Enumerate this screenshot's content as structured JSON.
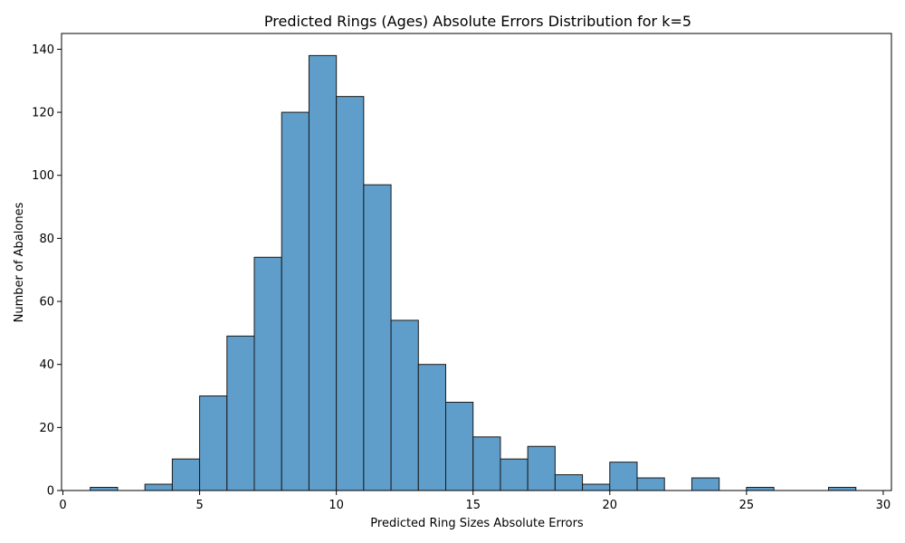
{
  "chart_data": {
    "type": "bar",
    "title": "Predicted Rings (Ages) Absolute Errors Distribution for k=5",
    "xlabel": "Predicted Ring Sizes Absolute Errors",
    "ylabel": "Number of Abalones",
    "xlim": [
      -0.05,
      30.3
    ],
    "ylim": [
      0,
      145
    ],
    "xticks": [
      0,
      5,
      10,
      15,
      20,
      25,
      30
    ],
    "yticks": [
      0,
      20,
      40,
      60,
      80,
      100,
      120,
      140
    ],
    "bins": [
      {
        "x0": 1,
        "x1": 2,
        "count": 1
      },
      {
        "x0": 3,
        "x1": 4,
        "count": 2
      },
      {
        "x0": 4,
        "x1": 5,
        "count": 10
      },
      {
        "x0": 5,
        "x1": 6,
        "count": 30
      },
      {
        "x0": 6,
        "x1": 7,
        "count": 49
      },
      {
        "x0": 7,
        "x1": 8,
        "count": 74
      },
      {
        "x0": 8,
        "x1": 9,
        "count": 120
      },
      {
        "x0": 9,
        "x1": 10,
        "count": 138
      },
      {
        "x0": 10,
        "x1": 11,
        "count": 125
      },
      {
        "x0": 11,
        "x1": 12,
        "count": 97
      },
      {
        "x0": 12,
        "x1": 13,
        "count": 54
      },
      {
        "x0": 13,
        "x1": 14,
        "count": 40
      },
      {
        "x0": 14,
        "x1": 15,
        "count": 28
      },
      {
        "x0": 15,
        "x1": 16,
        "count": 17
      },
      {
        "x0": 16,
        "x1": 17,
        "count": 10
      },
      {
        "x0": 17,
        "x1": 18,
        "count": 14
      },
      {
        "x0": 18,
        "x1": 19,
        "count": 5
      },
      {
        "x0": 19,
        "x1": 20,
        "count": 2
      },
      {
        "x0": 20,
        "x1": 21,
        "count": 9
      },
      {
        "x0": 21,
        "x1": 22,
        "count": 4
      },
      {
        "x0": 23,
        "x1": 24,
        "count": 4
      },
      {
        "x0": 25,
        "x1": 26,
        "count": 1
      },
      {
        "x0": 28,
        "x1": 29,
        "count": 1
      }
    ],
    "bar_color": "#5f9ecb",
    "edge_color": "#1a1a1a",
    "grid": false,
    "legend": "none"
  }
}
